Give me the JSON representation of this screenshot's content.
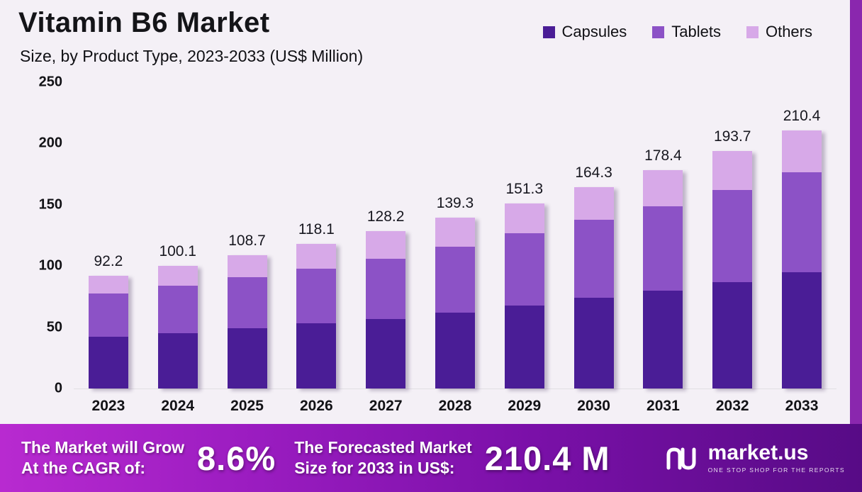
{
  "title": "Vitamin B6 Market",
  "subtitle": "Size, by Product Type, 2023-2033 (US$ Million)",
  "legend": [
    {
      "label": "Capsules",
      "color": "#4a1d96"
    },
    {
      "label": "Tablets",
      "color": "#8c52c6"
    },
    {
      "label": "Others",
      "color": "#d7a9e8"
    }
  ],
  "chart_data": {
    "type": "bar",
    "stacked": true,
    "title": "Vitamin B6 Market Size, by Product Type, 2023-2033 (US$ Million)",
    "categories": [
      "2023",
      "2024",
      "2025",
      "2026",
      "2027",
      "2028",
      "2029",
      "2030",
      "2031",
      "2032",
      "2033"
    ],
    "series": [
      {
        "name": "Capsules",
        "color": "#4a1d96",
        "values": [
          42,
          45,
          49,
          53,
          57,
          62,
          68,
          74,
          80,
          87,
          95
        ]
      },
      {
        "name": "Tablets",
        "color": "#8c52c6",
        "values": [
          35.5,
          39,
          42,
          45,
          49,
          54,
          58.5,
          63.5,
          69,
          75,
          81.5
        ]
      },
      {
        "name": "Others",
        "color": "#d7a9e8",
        "values": [
          14.7,
          16.1,
          17.7,
          20.1,
          22.2,
          23.3,
          24.8,
          26.8,
          29.4,
          31.7,
          33.9
        ]
      }
    ],
    "totals": [
      92.2,
      100.1,
      108.7,
      118.1,
      128.2,
      139.3,
      151.3,
      164.3,
      178.4,
      193.7,
      210.4
    ],
    "xlabel": "",
    "ylabel": "",
    "ylim": [
      0,
      250
    ],
    "yticks": [
      0,
      50,
      100,
      150,
      200,
      250
    ],
    "grid": false,
    "legend_position": "top-right"
  },
  "footer": {
    "cagr_label": "The Market will Grow\nAt the CAGR of:",
    "cagr_value": "8.6%",
    "forecast_label": "The Forecasted Market\nSize for 2033 in US$:",
    "forecast_value": "210.4 M",
    "brand": "market.us",
    "brand_tagline": "ONE STOP SHOP FOR THE REPORTS"
  }
}
